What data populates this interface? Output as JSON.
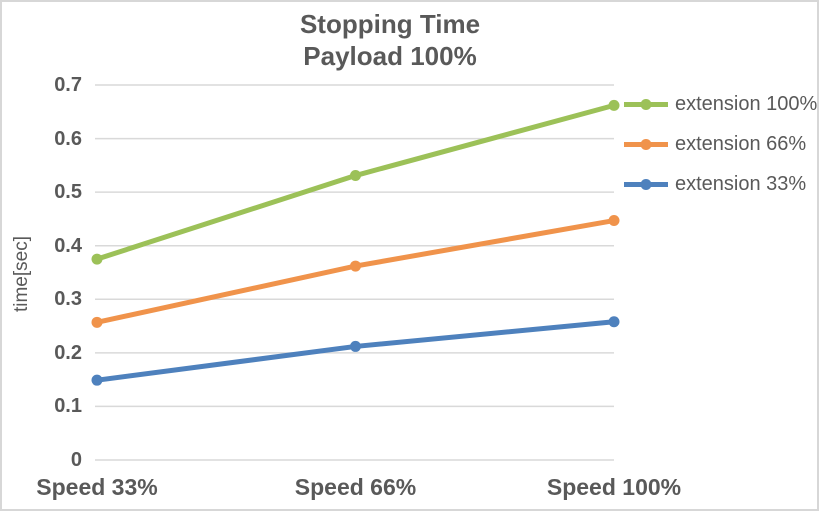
{
  "window": {
    "background": "#FFFFFF",
    "border_color": "#D7D7D7"
  },
  "chart_data": {
    "type": "line",
    "title": "Stopping Time",
    "subtitle": "Payload 100%",
    "ylabel": "time[sec]",
    "xlabel": "",
    "categories": [
      "Speed 33%",
      "Speed 66%",
      "Speed 100%"
    ],
    "series": [
      {
        "name": "extension 100%",
        "color": "#9CC158",
        "values": [
          0.375,
          0.531,
          0.662
        ]
      },
      {
        "name": "extension 66%",
        "color": "#F0934B",
        "values": [
          0.257,
          0.362,
          0.447
        ]
      },
      {
        "name": "extension 33%",
        "color": "#4E81BD",
        "values": [
          0.149,
          0.212,
          0.258
        ]
      }
    ],
    "ylim": [
      0,
      0.7
    ],
    "ytick_step": 0.1,
    "yticks": [
      0,
      0.1,
      0.2,
      0.3,
      0.4,
      0.5,
      0.6,
      0.7
    ],
    "grid": true,
    "gridline_color": "#D9D9D9",
    "text_color": "#595959",
    "legend_position": "right",
    "marker": "circle",
    "line_width": 5,
    "marker_radius": 5.5
  }
}
